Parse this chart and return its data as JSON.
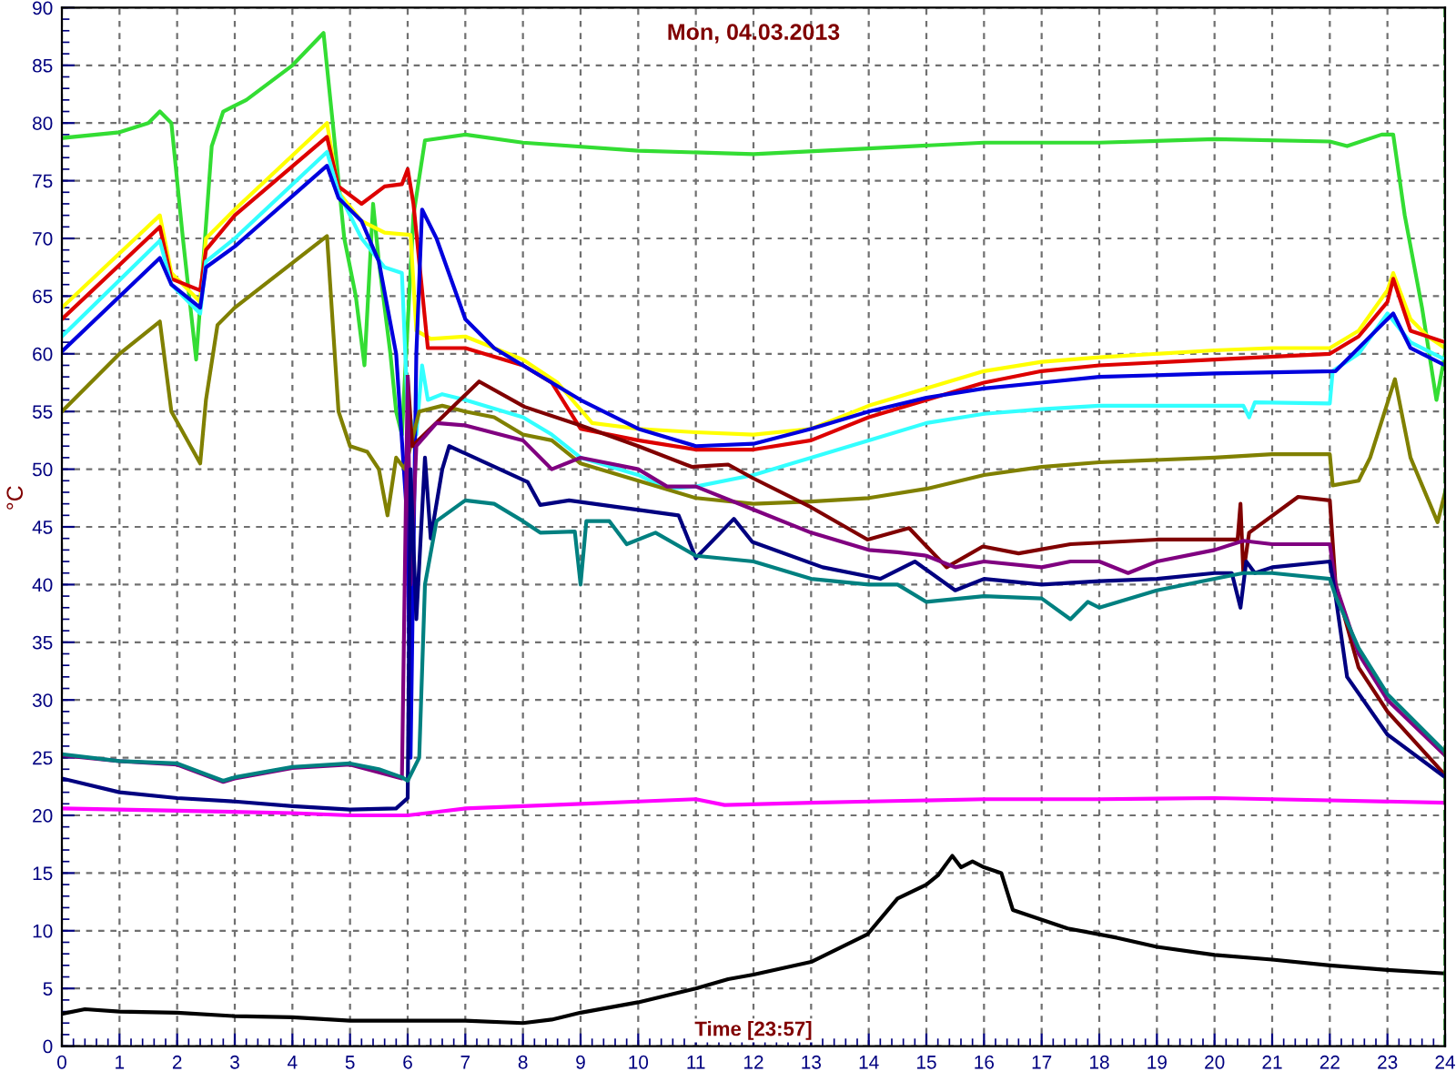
{
  "chart_data": {
    "type": "line",
    "title": "Mon, 04.03.2013",
    "xlabel": "Time [23:57]",
    "ylabel": "°C",
    "xlim": [
      0,
      24
    ],
    "xticks": [
      0,
      1,
      2,
      3,
      4,
      5,
      6,
      7,
      8,
      9,
      10,
      11,
      12,
      13,
      14,
      15,
      16,
      17,
      18,
      19,
      20,
      21,
      22,
      23,
      24
    ],
    "ylim": [
      0,
      90
    ],
    "yticks": [
      0,
      5,
      10,
      15,
      20,
      25,
      30,
      35,
      40,
      45,
      50,
      55,
      60,
      65,
      70,
      75,
      80,
      85,
      90
    ],
    "grid": true,
    "legend": false,
    "marker": "none",
    "line_style": "solid",
    "ref_lines": [
      {
        "axis": "x",
        "value": 24,
        "color": "#008000",
        "line_style": "dashed"
      }
    ],
    "series": [
      {
        "color": "#33dd33",
        "x": [
          0,
          1,
          1.5,
          1.7,
          1.9,
          2.1,
          2.33,
          2.6,
          2.8,
          3.2,
          4,
          4.54,
          4.7,
          4.9,
          5.1,
          5.25,
          5.4,
          5.5,
          5.7,
          5.8,
          5.9,
          6.1,
          6.3,
          7,
          8,
          10,
          12,
          14,
          16,
          18,
          20,
          22,
          22.3,
          22.9,
          23.1,
          23.3,
          23.6,
          23.85,
          24
        ],
        "values": [
          78.7,
          79.2,
          80,
          81,
          80,
          70,
          59.5,
          78,
          81,
          82,
          85,
          87.8,
          80,
          70,
          65,
          59,
          73,
          68,
          60,
          55,
          53,
          72,
          78.5,
          79,
          78.3,
          77.6,
          77.3,
          77.8,
          78.3,
          78.3,
          78.6,
          78.4,
          78,
          79,
          79,
          72,
          64,
          56,
          60
        ]
      },
      {
        "color": "#ffff00",
        "x": [
          0,
          1.7,
          1.9,
          2.4,
          2.5,
          3,
          4.6,
          4.8,
          5.2,
          5.6,
          6.05,
          6.15,
          6.4,
          7,
          8,
          8.6,
          9.2,
          10,
          11,
          12,
          13,
          14,
          15,
          16,
          17,
          18,
          20,
          21,
          22,
          22.5,
          23,
          23.1,
          23.4,
          23.7,
          24
        ],
        "values": [
          64,
          72,
          67,
          64.5,
          70,
          72.5,
          80,
          74,
          71.5,
          70.5,
          70.3,
          62,
          61.3,
          61.5,
          59.5,
          57.5,
          54,
          53.5,
          53.2,
          53,
          53.5,
          55.5,
          57,
          58.5,
          59.3,
          59.7,
          60.3,
          60.5,
          60.5,
          62,
          65.5,
          67,
          63,
          61.5,
          60.5
        ]
      },
      {
        "color": "#dd0000",
        "x": [
          0,
          1.7,
          1.9,
          2.4,
          2.5,
          3,
          4.6,
          4.8,
          5.2,
          5.6,
          5.9,
          6.0,
          6.1,
          6.35,
          7,
          8,
          8.5,
          9,
          10,
          11,
          12,
          13,
          14,
          15,
          16,
          17,
          18,
          20,
          22,
          22.5,
          23,
          23.1,
          23.4,
          24
        ],
        "values": [
          63,
          71,
          66.5,
          65.5,
          69,
          72,
          78.8,
          74.5,
          73,
          74.5,
          74.7,
          76,
          73,
          60.5,
          60.5,
          59,
          57.5,
          53.5,
          52.5,
          51.7,
          51.7,
          52.5,
          54.5,
          56,
          57.5,
          58.5,
          59,
          59.5,
          60,
          61.5,
          64.5,
          66.5,
          62,
          61
        ]
      },
      {
        "color": "#33ffff",
        "x": [
          0,
          1.7,
          1.9,
          2.4,
          2.5,
          3,
          4.6,
          4.8,
          5.2,
          5.6,
          5.9,
          6.0,
          6.15,
          6.25,
          6.35,
          6.6,
          7,
          8,
          8.5,
          9,
          10,
          10.5,
          11,
          12,
          13,
          14,
          15,
          16,
          17,
          18,
          19,
          20,
          20.5,
          20.6,
          20.7,
          22,
          22.05,
          22.5,
          23,
          23.4,
          24
        ],
        "values": [
          61.5,
          69.8,
          66,
          63.5,
          68,
          70,
          77.5,
          74,
          70,
          67.5,
          67,
          55,
          53,
          59,
          56,
          56.5,
          56,
          54.5,
          53,
          51,
          49.5,
          48.3,
          48.5,
          49.5,
          51,
          52.5,
          54,
          54.8,
          55.2,
          55.5,
          55.5,
          55.5,
          55.5,
          54.5,
          55.8,
          55.7,
          58.5,
          60,
          63.5,
          61,
          59.5
        ]
      },
      {
        "color": "#0000dd",
        "x": [
          0,
          1.7,
          1.9,
          2.4,
          2.5,
          3,
          4.6,
          4.8,
          5.2,
          5.5,
          5.8,
          6.0,
          6.05,
          6.15,
          6.25,
          6.5,
          7,
          7.5,
          8,
          9,
          10,
          11,
          12,
          13,
          14,
          15,
          16,
          17,
          18,
          20,
          22.1,
          23,
          23.1,
          23.4,
          24
        ],
        "values": [
          60.2,
          68.3,
          66,
          64,
          67.5,
          69.3,
          76.3,
          73.5,
          71.5,
          68,
          60,
          45,
          25,
          60,
          72.5,
          70,
          63,
          60.5,
          59,
          56,
          53.5,
          52,
          52.2,
          53.5,
          55,
          56.2,
          57,
          57.5,
          58,
          58.3,
          58.5,
          63,
          63.5,
          60.5,
          59
        ]
      },
      {
        "color": "#808000",
        "x": [
          0,
          1,
          1.7,
          1.9,
          2.4,
          2.5,
          2.7,
          3,
          4.6,
          4.8,
          5.0,
          5.3,
          5.5,
          5.65,
          5.8,
          5.95,
          6.05,
          6.2,
          6.6,
          7,
          7.5,
          8,
          8.5,
          9,
          10,
          11,
          12,
          13,
          14,
          15,
          16,
          17,
          18,
          20,
          21,
          22,
          22.05,
          22.5,
          22.7,
          23.13,
          23.4,
          23.87,
          24
        ],
        "values": [
          55,
          60,
          62.8,
          55,
          50.5,
          56,
          62.5,
          64,
          70.2,
          55,
          52,
          51.5,
          50,
          46,
          51,
          50,
          52,
          55,
          55.5,
          55,
          54.5,
          53,
          52.5,
          50.5,
          49,
          47.5,
          47,
          47.2,
          47.5,
          48.3,
          49.5,
          50.2,
          50.6,
          51,
          51.3,
          51.3,
          48.6,
          49,
          51,
          57.8,
          51,
          45.4,
          48
        ]
      },
      {
        "color": "#800000",
        "x": [
          6.0,
          6.08,
          7.24,
          8.03,
          9,
          10,
          10.93,
          11.56,
          12,
          13,
          13.98,
          14.7,
          15.35,
          15.98,
          16.6,
          17.5,
          19.03,
          20.4,
          20.45,
          20.5,
          20.6,
          21.45,
          22.0,
          22.1,
          22.5,
          23,
          24
        ],
        "values": [
          58,
          52,
          57.6,
          55.4,
          53.8,
          52,
          50.2,
          50.4,
          49.2,
          46.7,
          43.9,
          44.9,
          41.5,
          43.3,
          42.7,
          43.5,
          43.9,
          43.9,
          47,
          41,
          44.5,
          47.6,
          47.3,
          40,
          32.8,
          29,
          23.5
        ]
      },
      {
        "color": "#800080",
        "x": [
          0,
          1,
          2,
          2.8,
          3,
          4,
          5,
          5.9,
          6.0,
          6.05,
          6.15,
          6.5,
          7,
          8,
          8.5,
          9,
          10,
          10.5,
          11,
          12,
          13,
          14,
          14.5,
          15,
          15.5,
          16,
          17,
          17.5,
          18,
          18.5,
          19,
          20,
          20.5,
          21,
          22,
          22.1,
          22.5,
          23,
          24
        ],
        "values": [
          25.2,
          24.7,
          24.4,
          22.9,
          23.2,
          24.1,
          24.4,
          23.2,
          58,
          40,
          52,
          54,
          53.8,
          52.5,
          50,
          51,
          50,
          48.5,
          48.5,
          46.5,
          44.5,
          43,
          42.8,
          42.5,
          41.5,
          42,
          41.5,
          42,
          42,
          41,
          42,
          43,
          43.8,
          43.5,
          43.5,
          40,
          34,
          30,
          25.2
        ]
      },
      {
        "color": "#000080",
        "x": [
          0,
          1,
          2,
          3,
          4,
          5,
          5.8,
          6.0,
          6.05,
          6.15,
          6.3,
          6.4,
          6.6,
          6.72,
          8.08,
          8.3,
          8.8,
          10.7,
          11.0,
          11.66,
          11.98,
          13.2,
          14.2,
          14.8,
          15.5,
          16,
          17,
          18,
          19,
          20,
          20.3,
          20.45,
          20.55,
          20.7,
          21,
          22,
          22.1,
          22.3,
          23,
          24
        ],
        "values": [
          23.2,
          22,
          21.5,
          21.2,
          20.8,
          20.5,
          20.6,
          21.5,
          50,
          37,
          51,
          44,
          50,
          52,
          48.9,
          46.9,
          47.3,
          46,
          42.3,
          45.7,
          43.7,
          41.5,
          40.5,
          42,
          39.5,
          40.5,
          40,
          40.3,
          40.5,
          41,
          41,
          38,
          42,
          41,
          41.5,
          42,
          39,
          32,
          27,
          23.3
        ]
      },
      {
        "color": "#008080",
        "x": [
          0,
          1,
          2,
          2.8,
          3,
          4,
          5,
          5.5,
          5.9,
          6.0,
          6.2,
          6.3,
          6.5,
          7,
          7.5,
          8,
          8.3,
          8.9,
          9.0,
          9.1,
          9.5,
          9.8,
          10.3,
          11,
          12,
          13,
          14,
          14.5,
          15,
          16,
          17,
          17.5,
          17.8,
          18,
          19,
          20,
          20.5,
          21,
          22,
          22.1,
          22.5,
          23,
          24
        ],
        "values": [
          25.3,
          24.7,
          24.5,
          23,
          23.3,
          24.2,
          24.5,
          24,
          23.3,
          23,
          25,
          40,
          45.5,
          47.3,
          47,
          45.5,
          44.5,
          44.6,
          40,
          45.5,
          45.5,
          43.5,
          44.5,
          42.5,
          42,
          40.5,
          40,
          40,
          38.5,
          39,
          38.8,
          37,
          38.5,
          38,
          39.5,
          40.5,
          41,
          41,
          40.5,
          39,
          34.5,
          30.5,
          25.5
        ]
      },
      {
        "color": "#ff00ff",
        "x": [
          0,
          2,
          4,
          5,
          6,
          6.5,
          7,
          8,
          9,
          10,
          11,
          11.5,
          13,
          14,
          16,
          18,
          20,
          22,
          24
        ],
        "values": [
          20.6,
          20.4,
          20.2,
          20,
          20,
          20.3,
          20.6,
          20.8,
          21,
          21.2,
          21.4,
          20.9,
          21.1,
          21.2,
          21.4,
          21.4,
          21.5,
          21.3,
          21.1
        ]
      },
      {
        "color": "#000000",
        "x": [
          0,
          0.4,
          1,
          2,
          3,
          4,
          5,
          6,
          7,
          8,
          8.5,
          9,
          10,
          11,
          11.56,
          12,
          13,
          13.98,
          14.5,
          15,
          15.2,
          15.45,
          15.6,
          15.8,
          16,
          16.3,
          16.5,
          17.45,
          18.3,
          19,
          20,
          21,
          22,
          23,
          24
        ],
        "values": [
          2.8,
          3.2,
          3,
          2.9,
          2.6,
          2.5,
          2.2,
          2.2,
          2.2,
          2,
          2.3,
          2.9,
          3.8,
          5,
          5.8,
          6.2,
          7.3,
          9.7,
          12.8,
          14,
          14.8,
          16.5,
          15.5,
          16,
          15.5,
          15,
          11.8,
          10.2,
          9.4,
          8.6,
          7.9,
          7.5,
          7,
          6.6,
          6.3
        ]
      }
    ]
  }
}
